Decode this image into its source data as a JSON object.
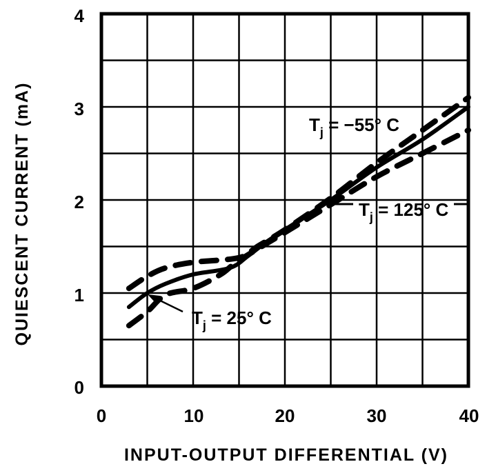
{
  "chart_data": {
    "type": "line",
    "title": "",
    "xlabel": "INPUT-OUTPUT DIFFERENTIAL (V)",
    "ylabel": "QUIESCENT CURRENT (mA)",
    "xlim": [
      0,
      40
    ],
    "ylim": [
      0,
      4
    ],
    "x_ticks": [
      0,
      10,
      20,
      30,
      40
    ],
    "y_ticks": [
      0,
      1,
      2,
      3,
      4
    ],
    "grid": true,
    "grid_x_step": 5,
    "grid_y_step": 0.5,
    "legend": null,
    "series": [
      {
        "name": "Tj = 25°C",
        "style": "solid",
        "x": [
          3,
          5,
          7,
          10,
          14,
          16,
          18,
          20,
          25,
          30,
          35,
          40
        ],
        "y": [
          0.85,
          1.0,
          1.1,
          1.2,
          1.27,
          1.4,
          1.55,
          1.68,
          2.0,
          2.35,
          2.65,
          3.0
        ]
      },
      {
        "name": "Tj = -55°C",
        "style": "dashed",
        "x": [
          3,
          5,
          7,
          10,
          15,
          17,
          20,
          25,
          30,
          35,
          40
        ],
        "y": [
          1.05,
          1.18,
          1.27,
          1.33,
          1.38,
          1.5,
          1.68,
          2.02,
          2.4,
          2.75,
          3.1
        ]
      },
      {
        "name": "Tj = 125°C",
        "style": "dashed",
        "x": [
          3,
          5,
          7,
          10,
          13,
          15,
          20,
          25,
          30,
          35,
          40
        ],
        "y": [
          0.65,
          0.8,
          0.98,
          1.05,
          1.2,
          1.35,
          1.65,
          1.95,
          2.25,
          2.5,
          2.75
        ]
      }
    ],
    "annotations": [
      {
        "text_main": "T",
        "text_sub": "j",
        "text_rest": " = −55° C",
        "series": "Tj = -55°C"
      },
      {
        "text_main": "T",
        "text_sub": "j",
        "text_rest": " = 125° C",
        "series": "Tj = 125°C"
      },
      {
        "text_main": "T",
        "text_sub": "j",
        "text_rest": " = 25° C",
        "series": "Tj = 25°C"
      }
    ]
  },
  "labels": {
    "xlabel": "INPUT-OUTPUT DIFFERENTIAL (V)",
    "ylabel": "QUIESCENT CURRENT (mA)",
    "x_ticks": [
      "0",
      "10",
      "20",
      "30",
      "40"
    ],
    "y_ticks": [
      "0",
      "1",
      "2",
      "3",
      "4"
    ],
    "annot_m55_main": "T",
    "annot_m55_sub": "j",
    "annot_m55_rest": " = −55° C",
    "annot_125_main": "T",
    "annot_125_sub": "j",
    "annot_125_rest": " = 125° C",
    "annot_25_main": "T",
    "annot_25_sub": "j",
    "annot_25_rest": " = 25° C"
  }
}
